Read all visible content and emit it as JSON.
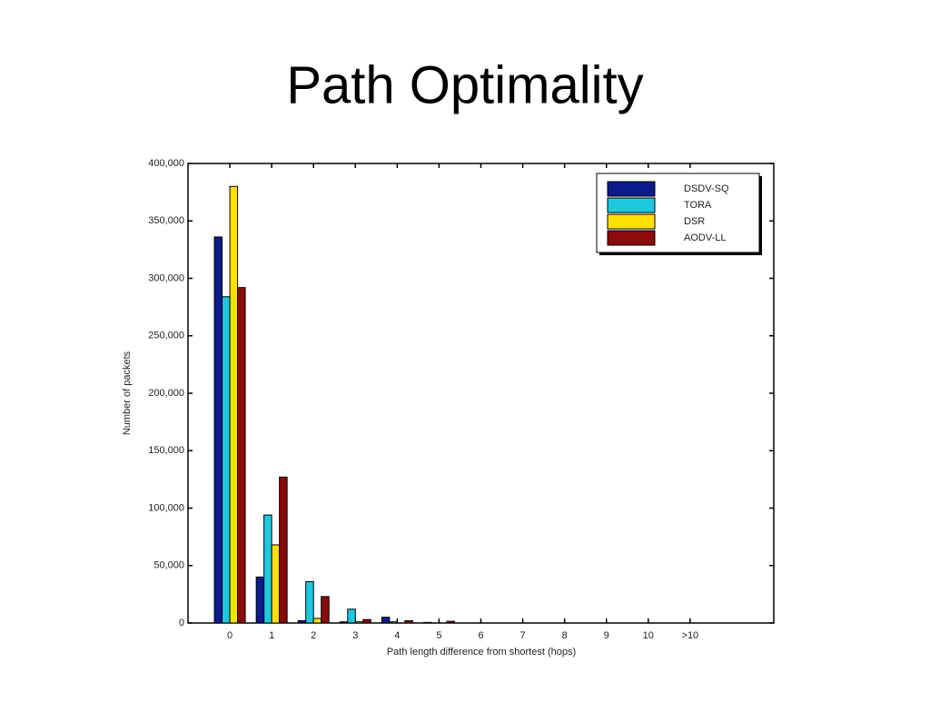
{
  "chart_data": {
    "type": "bar",
    "title": "Path Optimality",
    "x_label": "Path length difference from shortest (hops)",
    "y_label": "Number of packets",
    "categories": [
      "0",
      "1",
      "2",
      "3",
      "4",
      "5",
      "6",
      "7",
      "8",
      "9",
      "10",
      ">10"
    ],
    "series": [
      {
        "name": "DSDV-SQ",
        "color": "#0b1a8c",
        "values": [
          336000,
          40000,
          2000,
          1000,
          5000,
          500,
          0,
          0,
          0,
          0,
          0,
          0
        ]
      },
      {
        "name": "TORA",
        "color": "#1ec8e0",
        "values": [
          284000,
          94000,
          36000,
          12000,
          1000,
          0,
          0,
          0,
          0,
          0,
          0,
          0
        ]
      },
      {
        "name": "DSR",
        "color": "#ffe000",
        "values": [
          380000,
          68000,
          4000,
          1000,
          0,
          0,
          0,
          0,
          0,
          0,
          0,
          0
        ]
      },
      {
        "name": "AODV-LL",
        "color": "#8b0a0a",
        "values": [
          292000,
          127000,
          23000,
          3000,
          2000,
          1500,
          0,
          0,
          0,
          0,
          0,
          0
        ]
      }
    ],
    "ylim": [
      0,
      400000
    ],
    "yticks": [
      0,
      {
        "value": 50000,
        "label": "50,000"
      },
      {
        "value": 100000,
        "label": "100,000"
      },
      {
        "value": 150000,
        "label": "150,000"
      },
      {
        "value": 200000,
        "label": "200,000"
      },
      {
        "value": 250000,
        "label": "250,000"
      },
      {
        "value": 300000,
        "label": "300,000"
      },
      {
        "value": 350000,
        "label": "350,000"
      },
      {
        "value": 400000,
        "label": "400,000"
      }
    ],
    "legend": "upper right"
  }
}
